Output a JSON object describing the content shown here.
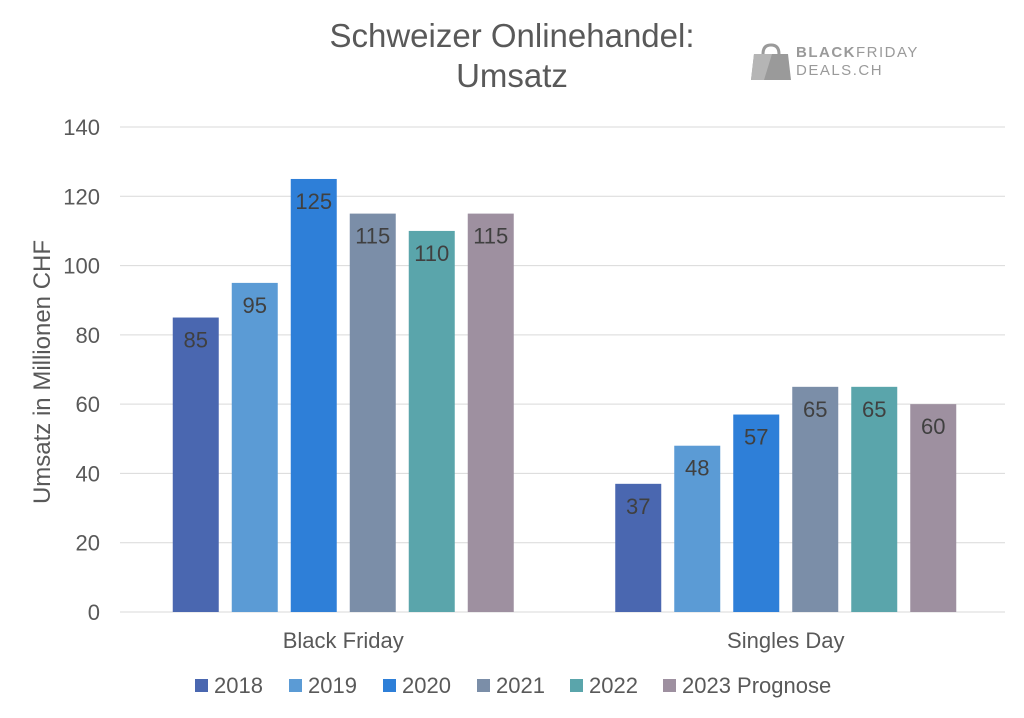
{
  "chart_data": {
    "type": "bar",
    "title_lines": [
      "Schweizer Onlinehandel:",
      "Umsatz"
    ],
    "ylabel": "Umsatz in Millionen CHF",
    "xlabel": "",
    "ylim": [
      0,
      140
    ],
    "yticks": [
      0,
      20,
      40,
      60,
      80,
      100,
      120,
      140
    ],
    "grid": true,
    "legend_placement": "bottom",
    "categories": [
      "Black Friday",
      "Singles Day"
    ],
    "series": [
      {
        "name": "2018",
        "values": [
          85,
          37
        ],
        "color": "#4a67b0"
      },
      {
        "name": "2019",
        "values": [
          95,
          48
        ],
        "color": "#5b9bd5"
      },
      {
        "name": "2020",
        "values": [
          125,
          57
        ],
        "color": "#2e7fd8"
      },
      {
        "name": "2021",
        "values": [
          115,
          65
        ],
        "color": "#7b8ea8"
      },
      {
        "name": "2022",
        "values": [
          110,
          65
        ],
        "color": "#5aa5ab"
      },
      {
        "name": "2023 Prognose",
        "values": [
          115,
          60
        ],
        "color": "#9e90a0"
      }
    ]
  },
  "logo": {
    "line1_a": "BLACK",
    "line1_b": "FRIDAY",
    "line2": "DEALS.CH",
    "icon": "shopping-bag-icon"
  }
}
